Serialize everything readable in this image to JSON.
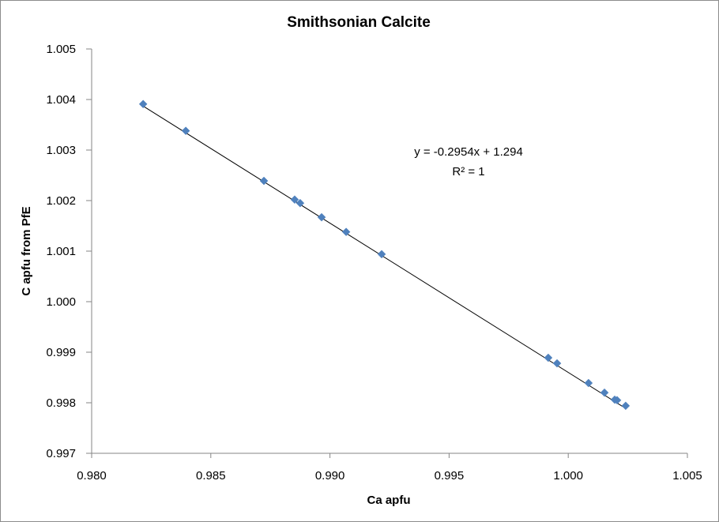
{
  "chart_data": {
    "type": "scatter",
    "title": "Smithsonian Calcite",
    "xlabel": "Ca apfu",
    "ylabel": "C apfu from PfE",
    "xlim": [
      0.98,
      1.005
    ],
    "ylim": [
      0.997,
      1.005
    ],
    "x_ticks": [
      "0.980",
      "0.985",
      "0.990",
      "0.995",
      "1.000",
      "1.005"
    ],
    "y_ticks": [
      "1.005",
      "1.004",
      "1.003",
      "1.002",
      "1.001",
      "1.000",
      "0.999",
      "0.998",
      "0.997"
    ],
    "x_tick_values": [
      0.98,
      0.985,
      0.99,
      0.995,
      1.0,
      1.005
    ],
    "y_tick_values": [
      1.005,
      1.004,
      1.003,
      1.002,
      1.001,
      1.0,
      0.999,
      0.998,
      0.997
    ],
    "grid": false,
    "legend": "none",
    "series": [
      {
        "name": "Smithsonian Calcite",
        "marker": "diamond",
        "color": "#4F81BD",
        "points": [
          {
            "x": 0.98216,
            "y": 1.00391
          },
          {
            "x": 0.98395,
            "y": 1.00338
          },
          {
            "x": 0.98723,
            "y": 1.00239
          },
          {
            "x": 0.98852,
            "y": 1.00202
          },
          {
            "x": 0.98875,
            "y": 1.00195
          },
          {
            "x": 0.98965,
            "y": 1.00167
          },
          {
            "x": 0.99068,
            "y": 1.00138
          },
          {
            "x": 0.99217,
            "y": 1.00094
          },
          {
            "x": 0.99916,
            "y": 0.99889
          },
          {
            "x": 0.99953,
            "y": 0.99878
          },
          {
            "x": 1.00085,
            "y": 0.99839
          },
          {
            "x": 1.00152,
            "y": 0.9982
          },
          {
            "x": 1.00195,
            "y": 0.99806
          },
          {
            "x": 1.00205,
            "y": 0.99805
          },
          {
            "x": 1.00241,
            "y": 0.99794
          }
        ]
      }
    ],
    "trendline": {
      "type": "linear",
      "slope": -0.2954,
      "intercept": 1.294,
      "x_range": [
        0.98216,
        1.00241
      ],
      "color": "#000000",
      "equation_label": "y = -0.2954x + 1.294",
      "r2_label": "R² = 1"
    },
    "colors": {
      "axis": "#868686",
      "marker": "#4F81BD",
      "trendline": "#000000"
    }
  }
}
